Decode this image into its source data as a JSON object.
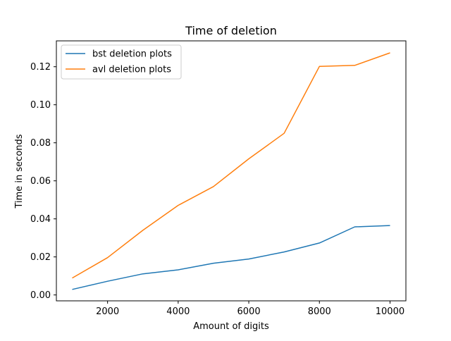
{
  "chart_data": {
    "type": "line",
    "title": "Time of deletion",
    "xlabel": "Amount of digits",
    "ylabel": "Time in seconds",
    "x": [
      1000,
      2000,
      3000,
      4000,
      5000,
      6000,
      7000,
      8000,
      9000,
      10000
    ],
    "xlim": [
      550,
      10450
    ],
    "ylim": [
      -0.0031,
      0.1336
    ],
    "xticks": [
      2000,
      4000,
      6000,
      8000,
      10000
    ],
    "xtick_labels": [
      "2000",
      "4000",
      "6000",
      "8000",
      "10000"
    ],
    "yticks": [
      0.0,
      0.02,
      0.04,
      0.06,
      0.08,
      0.1,
      0.12
    ],
    "ytick_labels": [
      "0.00",
      "0.02",
      "0.04",
      "0.06",
      "0.08",
      "0.10",
      "0.12"
    ],
    "grid": false,
    "legend_position": "top-left",
    "series": [
      {
        "name": "bst deletion plots",
        "color": "#1f77b4",
        "values": [
          0.0029,
          0.0072,
          0.0111,
          0.0132,
          0.0167,
          0.0189,
          0.0226,
          0.0273,
          0.0358,
          0.0365
        ]
      },
      {
        "name": "avl deletion plots",
        "color": "#ff7f0e",
        "values": [
          0.0089,
          0.0196,
          0.034,
          0.0471,
          0.057,
          0.0716,
          0.085,
          0.1202,
          0.1207,
          0.1273
        ]
      }
    ]
  }
}
